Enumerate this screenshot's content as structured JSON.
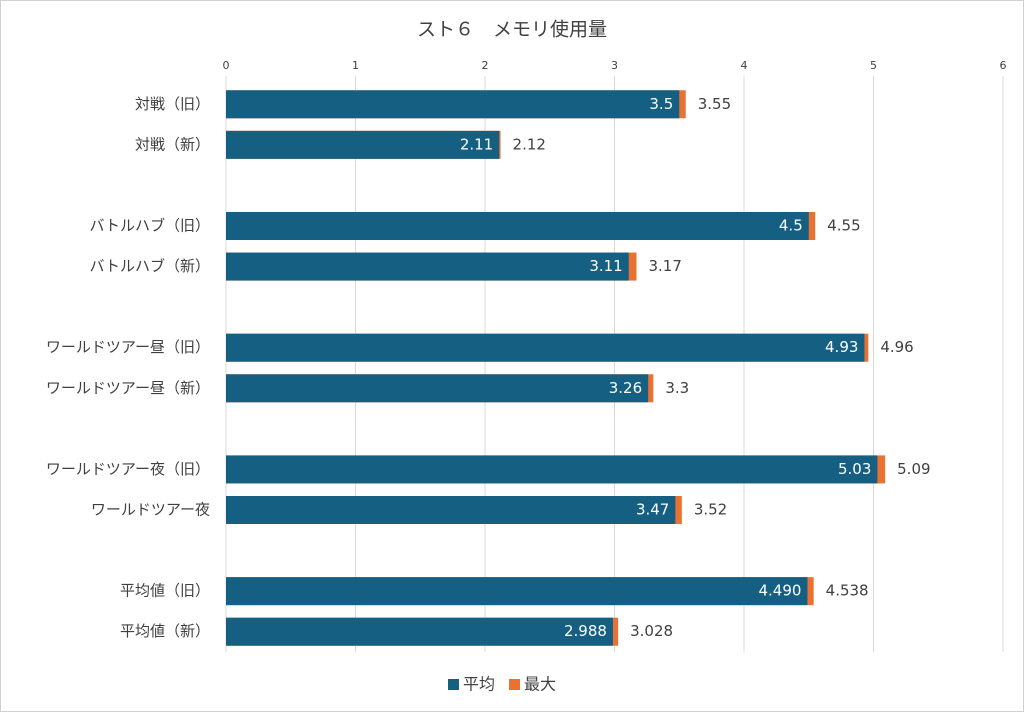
{
  "chart_data": {
    "type": "bar",
    "orientation": "horizontal",
    "title": "スト６　メモリ使用量",
    "categories": [
      "対戦（旧）",
      "対戦（新）",
      null,
      "バトルハブ（旧）",
      "バトルハブ（新）",
      null,
      "ワールドツアー昼（旧）",
      "ワールドツアー昼（新）",
      null,
      "ワールドツアー夜（旧）",
      "ワールドツアー夜",
      null,
      "平均値（旧）",
      "平均値（新）"
    ],
    "series": [
      {
        "name": "最大",
        "color": "#e97132",
        "values": [
          3.55,
          2.12,
          null,
          4.55,
          3.17,
          null,
          4.96,
          3.3,
          null,
          5.09,
          3.52,
          null,
          4.538,
          3.028
        ]
      },
      {
        "name": "平均",
        "color": "#156082",
        "values": [
          3.5,
          2.11,
          null,
          4.5,
          3.11,
          null,
          4.93,
          3.26,
          null,
          5.03,
          3.47,
          null,
          4.49,
          2.988
        ],
        "value_labels": [
          "3.5",
          "2.11",
          null,
          "4.5",
          "3.11",
          null,
          "4.93",
          "3.26",
          null,
          "5.03",
          "3.47",
          null,
          "4.490",
          "2.988"
        ]
      }
    ],
    "xlim": [
      0,
      6
    ],
    "xticks": [
      0,
      1,
      2,
      3,
      4,
      5,
      6
    ],
    "grid": true,
    "legend": "bottom"
  }
}
